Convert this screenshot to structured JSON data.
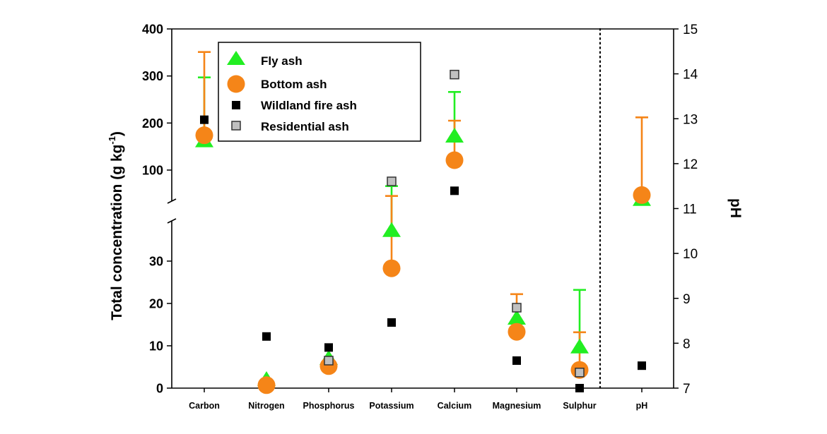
{
  "chart_data": {
    "type": "scatter",
    "title": "",
    "xlabel": "",
    "ylabel": "Total concentration (g kg-1)",
    "ylabel_main": "Total concentration (g kg",
    "ylabel_sup": "-1",
    "ylabel_close": ")",
    "y2label": "pH",
    "categories": [
      "Carbon",
      "Nitrogen",
      "Phosphorus",
      "Potassium",
      "Calcium",
      "Magnesium",
      "Sulphur",
      "pH"
    ],
    "y_axis": {
      "broken": true,
      "lower_range": [
        0,
        39.5
      ],
      "upper_range": [
        34,
        400
      ],
      "lower_ticks": [
        0,
        10,
        20,
        30
      ],
      "upper_ticks": [
        100,
        200,
        300,
        400
      ]
    },
    "y2_axis": {
      "range": [
        7,
        15
      ],
      "ticks": [
        7,
        8,
        9,
        10,
        11,
        12,
        13,
        14,
        15
      ],
      "applies_to": "pH"
    },
    "separator_before_category": "pH",
    "legend_position": "top-left",
    "series": [
      {
        "name": "Fly ash",
        "marker": "triangle",
        "color": "#22ee22",
        "values": [
          162,
          2,
          7,
          37.2,
          172,
          16.5,
          9.7,
          11.2
        ],
        "error_upper": [
          297,
          null,
          null,
          66,
          266,
          null,
          23.2,
          null
        ]
      },
      {
        "name": "Bottom ash",
        "marker": "circle",
        "color": "#f58518",
        "values": [
          174,
          0.7,
          5.2,
          28.3,
          121,
          13.3,
          4.3,
          11.3
        ],
        "error_upper": [
          351,
          null,
          null,
          45,
          205,
          22.2,
          13.2,
          13.03
        ]
      },
      {
        "name": "Wildland fire ash",
        "marker": "square",
        "color": "#000000",
        "values": [
          207,
          12.2,
          9.6,
          15.5,
          56,
          6.5,
          0,
          7.5
        ],
        "error_upper": [
          null,
          null,
          null,
          null,
          null,
          null,
          null,
          null
        ]
      },
      {
        "name": "Residential ash",
        "marker": "square",
        "color": "#c0c0c0",
        "values": [
          null,
          null,
          6.5,
          76,
          303,
          19,
          3.7,
          null
        ],
        "error_upper": [
          null,
          null,
          null,
          null,
          null,
          null,
          null,
          null
        ]
      }
    ]
  }
}
